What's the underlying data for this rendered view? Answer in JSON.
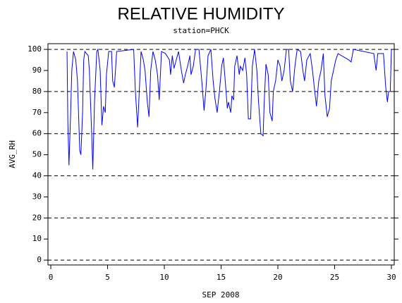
{
  "chart_data": {
    "type": "line",
    "title": "RELATIVE HUMIDITY",
    "subtitle": "station=PHCK",
    "x_label": "SEP 2008",
    "y_label": "AVG_RH",
    "xlim": [
      -0.25,
      30.25
    ],
    "xticks": [
      0,
      5,
      10,
      15,
      20,
      25,
      30
    ],
    "ylim": [
      -2.3,
      102.7
    ],
    "yticks": [
      0,
      10,
      20,
      30,
      40,
      50,
      60,
      70,
      80,
      90,
      100
    ],
    "grid_lines": [
      0,
      20,
      40,
      60,
      80,
      100
    ],
    "series": [
      {
        "name": "AVG_RH",
        "color": "#0000ff",
        "x": [
          1.43,
          1.5,
          1.6,
          1.75,
          1.85,
          2.0,
          2.2,
          2.35,
          2.55,
          2.65,
          2.8,
          2.9,
          3.0,
          3.3,
          3.4,
          3.6,
          3.7,
          3.85,
          4.05,
          4.15,
          4.35,
          4.5,
          4.65,
          4.8,
          4.9,
          5.1,
          5.35,
          5.45,
          5.6,
          5.8,
          7.3,
          7.45,
          7.65,
          7.75,
          7.95,
          8.15,
          8.3,
          8.5,
          8.65,
          8.8,
          9.0,
          9.2,
          9.4,
          9.55,
          9.75,
          10.1,
          10.45,
          10.55,
          10.7,
          10.85,
          11.05,
          11.25,
          11.5,
          11.7,
          11.85,
          12.05,
          12.25,
          12.35,
          12.55,
          12.75,
          13.05,
          13.3,
          13.5,
          13.65,
          13.85,
          14.1,
          14.3,
          14.45,
          14.65,
          14.85,
          15.05,
          15.2,
          15.35,
          15.55,
          15.65,
          15.85,
          15.95,
          16.1,
          16.2,
          16.4,
          16.6,
          16.7,
          16.9,
          17.1,
          17.25,
          17.4,
          17.6,
          17.75,
          17.95,
          18.15,
          18.3,
          18.5,
          18.7,
          18.8,
          18.95,
          19.15,
          19.3,
          19.5,
          19.6,
          19.8,
          20.0,
          20.2,
          20.35,
          20.55,
          20.75,
          20.95,
          21.1,
          21.3,
          21.5,
          21.7,
          22.0,
          22.2,
          22.35,
          22.55,
          22.85,
          23.05,
          23.25,
          23.4,
          23.6,
          23.8,
          24.0,
          24.15,
          24.35,
          24.55,
          24.7,
          24.9,
          25.1,
          25.3,
          26.25,
          26.45,
          26.65,
          28.45,
          28.65,
          28.8,
          29.3,
          29.5,
          29.65,
          29.75,
          29.9,
          30.0
        ],
        "values": [
          99,
          66,
          45,
          70,
          90,
          99,
          95,
          85,
          52,
          50,
          70,
          95,
          99,
          97,
          90,
          60,
          43,
          75,
          99,
          100,
          90,
          64,
          73,
          70,
          88,
          99,
          99,
          85,
          82,
          99,
          100,
          80,
          63,
          75,
          99,
          95,
          90,
          75,
          68,
          90,
          99,
          95,
          88,
          76,
          99,
          98,
          95,
          88,
          97,
          91,
          95,
          99,
          90,
          84,
          88,
          92,
          97,
          88,
          92,
          100,
          100,
          85,
          71,
          80,
          97,
          100,
          85,
          77,
          70,
          80,
          92,
          96,
          86,
          72,
          75,
          70,
          78,
          76,
          92,
          97,
          88,
          92,
          90,
          96,
          88,
          67,
          67,
          92,
          100,
          90,
          75,
          60,
          59,
          75,
          93,
          88,
          70,
          66,
          80,
          85,
          95,
          92,
          85,
          90,
          100,
          100,
          85,
          80,
          92,
          100,
          99,
          90,
          85,
          95,
          98,
          90,
          80,
          73,
          85,
          90,
          98,
          78,
          68,
          72,
          85,
          90,
          95,
          98,
          95,
          94,
          100,
          98,
          90,
          98,
          98,
          82,
          75,
          80,
          80,
          100
        ]
      }
    ]
  }
}
